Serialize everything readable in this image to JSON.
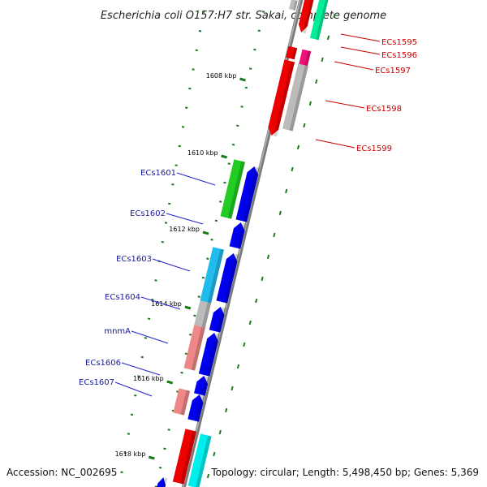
{
  "title": "Escherichia coli O157:H7 str. Sakai, complete genome",
  "footer": {
    "accession": "Accession: NC_002695",
    "topology": "Topology: circular; Length: 5,498,450 bp; Genes: 5,369"
  },
  "ticks": [
    "1608 kbp",
    "1610 kbp",
    "1612 kbp",
    "1614 kbp",
    "1616 kbp",
    "1618 kbp"
  ],
  "genes_forward_labels": [
    "ECs1595",
    "ECs1596",
    "ECs1597",
    "ECs1598",
    "ECs1599"
  ],
  "genes_reverse_labels": [
    "ECs1601",
    "ECs1602",
    "ECs1603",
    "ECs1604",
    "mnmA",
    "ECs1606",
    "ECs1607"
  ],
  "colors": {
    "backbone": "#808080",
    "forward_label": "#cc0000",
    "reverse_label": "#1a1aa0",
    "gene_blue": "#0000ee",
    "gene_red": "#ee0000",
    "gc_dots": "#1a7a1a"
  }
}
